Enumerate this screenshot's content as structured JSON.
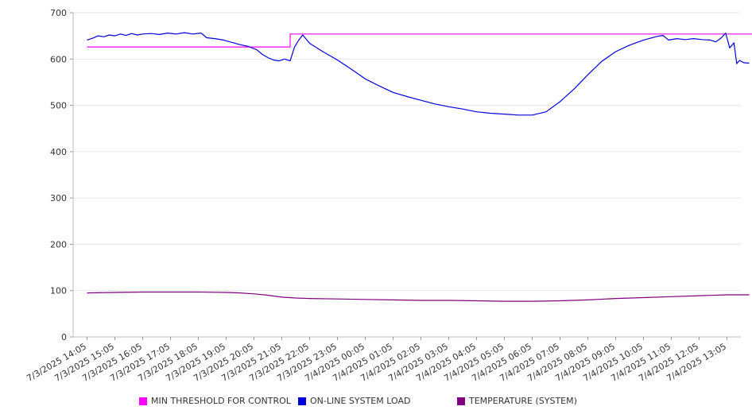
{
  "chart_data": {
    "type": "line",
    "ylim": [
      0,
      700
    ],
    "yticks": [
      "0",
      "100",
      "200",
      "300",
      "400",
      "500",
      "600",
      "700"
    ],
    "grid": "horizontal",
    "legend_position": "bottom",
    "x_labels": [
      "7/3/2025 14:05",
      "7/3/2025 15:05",
      "7/3/2025 16:05",
      "7/3/2025 17:05",
      "7/3/2025 18:05",
      "7/3/2025 19:05",
      "7/3/2025 20:05",
      "7/3/2025 21:05",
      "7/3/2025 22:05",
      "7/3/2025 23:05",
      "7/4/2025 00:05",
      "7/4/2025 01:05",
      "7/4/2025 02:05",
      "7/4/2025 03:05",
      "7/4/2025 04:05",
      "7/4/2025 05:05",
      "7/4/2025 06:05",
      "7/4/2025 07:05",
      "7/4/2025 08:05",
      "7/4/2025 09:05",
      "7/4/2025 10:05",
      "7/4/2025 11:05",
      "7/4/2025 12:05",
      "7/4/2025 13:05"
    ],
    "series": [
      {
        "name": "MIN THRESHOLD FOR CONTROL",
        "color": "#ff00ff",
        "points": [
          [
            0,
            626
          ],
          [
            7.3,
            626
          ],
          [
            7.3,
            654
          ],
          [
            24,
            654
          ]
        ]
      },
      {
        "name": "ON-LINE SYSTEM LOAD",
        "color": "#0000dd",
        "points": [
          [
            0,
            641
          ],
          [
            0.2,
            645
          ],
          [
            0.4,
            650
          ],
          [
            0.6,
            648
          ],
          [
            0.8,
            652
          ],
          [
            1.0,
            650
          ],
          [
            1.2,
            654
          ],
          [
            1.4,
            651
          ],
          [
            1.6,
            655
          ],
          [
            1.8,
            652
          ],
          [
            2.0,
            654
          ],
          [
            2.3,
            655
          ],
          [
            2.6,
            653
          ],
          [
            2.9,
            656
          ],
          [
            3.2,
            654
          ],
          [
            3.5,
            657
          ],
          [
            3.8,
            654
          ],
          [
            4.1,
            656
          ],
          [
            4.3,
            646
          ],
          [
            4.6,
            644
          ],
          [
            4.9,
            641
          ],
          [
            5.2,
            636
          ],
          [
            5.5,
            631
          ],
          [
            5.8,
            627
          ],
          [
            6.1,
            620
          ],
          [
            6.3,
            610
          ],
          [
            6.5,
            603
          ],
          [
            6.7,
            598
          ],
          [
            6.9,
            596
          ],
          [
            7.1,
            600
          ],
          [
            7.3,
            596
          ],
          [
            7.45,
            625
          ],
          [
            7.6,
            640
          ],
          [
            7.75,
            652
          ],
          [
            8.0,
            634
          ],
          [
            8.5,
            615
          ],
          [
            9.0,
            598
          ],
          [
            9.5,
            578
          ],
          [
            10.0,
            557
          ],
          [
            10.5,
            542
          ],
          [
            11.0,
            528
          ],
          [
            11.5,
            519
          ],
          [
            12.0,
            511
          ],
          [
            12.5,
            503
          ],
          [
            13.0,
            497
          ],
          [
            13.5,
            492
          ],
          [
            14.0,
            486
          ],
          [
            14.5,
            483
          ],
          [
            15.0,
            481
          ],
          [
            15.5,
            479
          ],
          [
            16.0,
            479
          ],
          [
            16.5,
            486
          ],
          [
            17.0,
            508
          ],
          [
            17.5,
            535
          ],
          [
            18.0,
            566
          ],
          [
            18.5,
            595
          ],
          [
            19.0,
            616
          ],
          [
            19.5,
            630
          ],
          [
            20.0,
            641
          ],
          [
            20.5,
            649
          ],
          [
            20.7,
            651
          ],
          [
            20.9,
            641
          ],
          [
            21.2,
            644
          ],
          [
            21.5,
            642
          ],
          [
            21.8,
            644
          ],
          [
            22.1,
            642
          ],
          [
            22.4,
            641
          ],
          [
            22.6,
            637
          ],
          [
            22.8,
            646
          ],
          [
            22.95,
            656
          ],
          [
            23.1,
            624
          ],
          [
            23.25,
            635
          ],
          [
            23.35,
            590
          ],
          [
            23.45,
            597
          ],
          [
            23.6,
            592
          ],
          [
            23.8,
            591
          ]
        ]
      },
      {
        "name": "TEMPERATURE (SYSTEM)",
        "color": "#800080",
        "points": [
          [
            0,
            95
          ],
          [
            1,
            96
          ],
          [
            2,
            97
          ],
          [
            3,
            97
          ],
          [
            4,
            97
          ],
          [
            5,
            96
          ],
          [
            5.5,
            95
          ],
          [
            6,
            93
          ],
          [
            6.5,
            90
          ],
          [
            7,
            86
          ],
          [
            7.5,
            84
          ],
          [
            8,
            83
          ],
          [
            9,
            82
          ],
          [
            10,
            81
          ],
          [
            11,
            80
          ],
          [
            12,
            79
          ],
          [
            13,
            79
          ],
          [
            14,
            78
          ],
          [
            15,
            77
          ],
          [
            16,
            77
          ],
          [
            17,
            78
          ],
          [
            18,
            80
          ],
          [
            19,
            83
          ],
          [
            20,
            85
          ],
          [
            21,
            87
          ],
          [
            22,
            89
          ],
          [
            23,
            91
          ],
          [
            23.8,
            91
          ]
        ]
      }
    ]
  }
}
